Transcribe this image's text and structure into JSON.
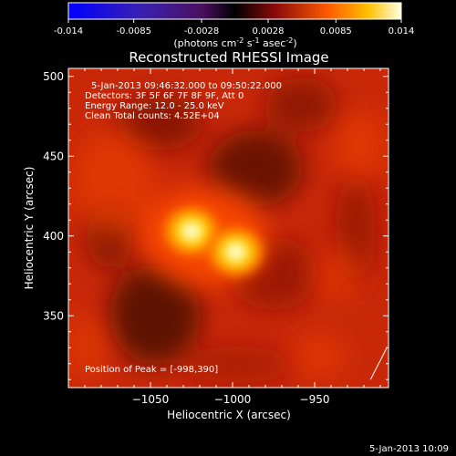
{
  "chart_data": {
    "type": "heatmap",
    "title": "Reconstructed RHESSI Image",
    "xlabel": "Heliocentric X (arcsec)",
    "ylabel": "Heliocentric Y (arcsec)",
    "xlim": [
      -1100,
      -905
    ],
    "ylim": [
      305,
      505
    ],
    "x_ticks": [
      -1050,
      -1000,
      -950
    ],
    "y_ticks": [
      350,
      400,
      450,
      500
    ],
    "colorbar": {
      "ticks": [
        "-0.014",
        "-0.0085",
        "-0.0028",
        "0.0028",
        "0.0085",
        "0.014"
      ],
      "range": [
        -0.014,
        0.014
      ],
      "label_prefix": "(photons cm",
      "label_sup1": "-2",
      "label_mid": " s",
      "label_sup2": "-1",
      "label_mid2": " asec",
      "label_sup3": "-2",
      "label_suffix": ")"
    },
    "info_lines": [
      "5-Jan-2013 09:46:32.000 to 09:50:22.000",
      "Detectors: 3F 5F 6F 7F 8F 9F, Att 0",
      "Energy Range: 12.0 - 25.0 keV",
      "Clean    Total counts: 4.52E+04"
    ],
    "peak_label": "Position of Peak = [-998,390]",
    "sources": [
      {
        "x": -1025,
        "y": 403,
        "intensity": 1.0
      },
      {
        "x": -998,
        "y": 390,
        "intensity": 1.0
      }
    ],
    "limb_line": [
      [
        -916,
        310
      ],
      [
        -906,
        330
      ]
    ]
  },
  "footer": {
    "date": "5-Jan-2013 10:09"
  }
}
